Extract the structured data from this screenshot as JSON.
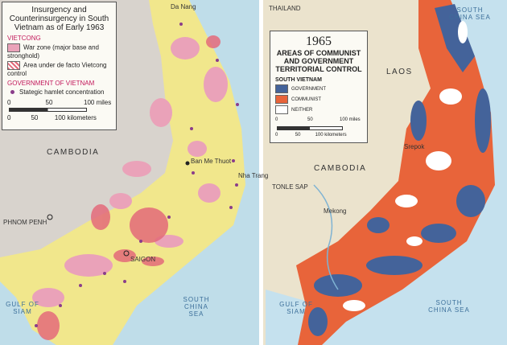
{
  "left_map": {
    "title": "Insurgency and Counterinsurgency in South Vietnam as of Early 1963",
    "vietcong_heading": "VIETCONG",
    "vietcong_items": [
      "War zone (major base and stronghold)",
      "Area under de facto Vietcong control"
    ],
    "government_heading": "GOVERNMENT OF VIETNAM",
    "hamlet_label": "Stategic hamlet concentration",
    "scale_miles": [
      "0",
      "50",
      "100 miles"
    ],
    "scale_km": [
      "0",
      "50",
      "100 kilometers"
    ],
    "places": [
      "Da Nang",
      "CAMBODIA",
      "Ban Me Thuot",
      "Nha Trang",
      "PHNOM PENH",
      "SAIGON",
      "SOUTH CHINA SEA",
      "GULF OF SIAM"
    ]
  },
  "right_map": {
    "year": "1965",
    "title": "AREAS OF COMMUNIST AND GOVERNMENT TERRITORIAL CONTROL",
    "legend_heading": "SOUTH VIETNAM",
    "legend_items": [
      "GOVERNMENT",
      "COMMUNIST",
      "NEITHER"
    ],
    "scale_miles": [
      "0",
      "50",
      "100 miles"
    ],
    "scale_km": [
      "0",
      "50",
      "100 kilometers"
    ],
    "places": [
      "THAILAND",
      "SOUTH CHINA SEA",
      "LAOS",
      "CAMBODIA",
      "Srepok",
      "TONLE SAP",
      "Mekong",
      "GULF OF SIAM",
      "SOUTH CHINA SEA"
    ]
  }
}
